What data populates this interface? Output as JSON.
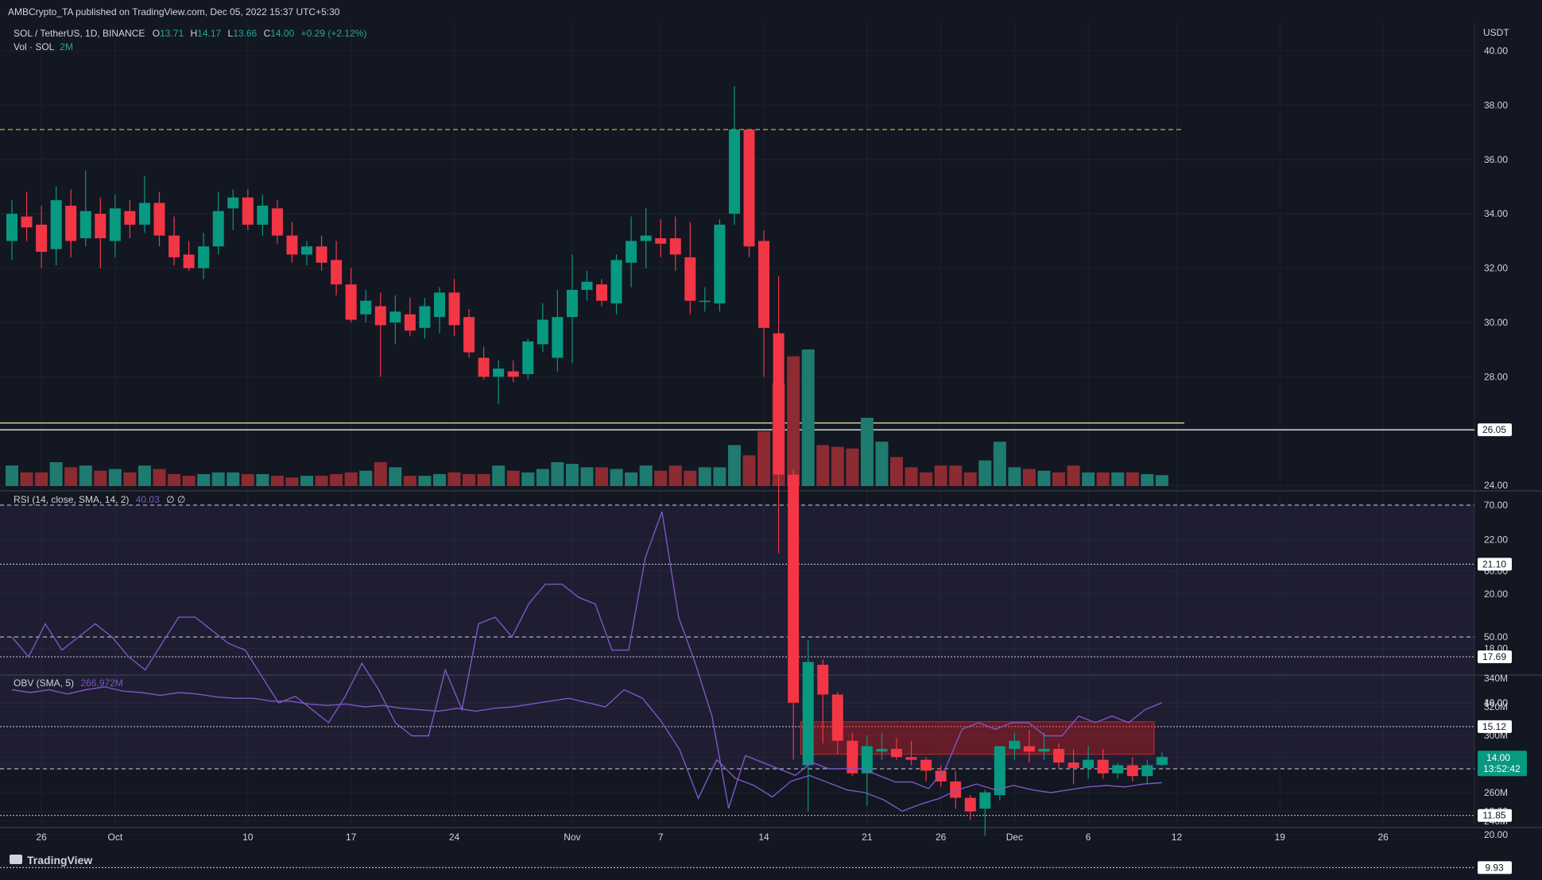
{
  "header": {
    "publisher": "AMBCrypto_TA published on TradingView.com, Dec 05, 2022 15:37 UTC+5:30",
    "symbol": "SOL / TetherUS, 1D, BINANCE",
    "ohlc": {
      "o_label": "O",
      "o": "13.71",
      "h_label": "H",
      "h": "14.17",
      "l_label": "L",
      "l": "13.66",
      "c_label": "C",
      "c": "14.00",
      "change": "+0.29 (+2.12%)"
    },
    "vol_label": "Vol · SOL",
    "vol_value": "2M"
  },
  "chart_data": [
    {
      "type": "candlestick",
      "title": "SOL / TetherUS, 1D, BINANCE",
      "currency": "USDT",
      "ylim": [
        8,
        41
      ],
      "y_ticks": [
        "40.00",
        "38.00",
        "36.00",
        "34.00",
        "32.00",
        "30.00",
        "28.00",
        "26.00",
        "24.00",
        "22.00",
        "20.00",
        "18.00",
        "16.00",
        "14.00",
        "12.00",
        "10.00"
      ],
      "candles": [
        {
          "o": 33.0,
          "h": 34.5,
          "l": 32.3,
          "c": 34.0
        },
        {
          "o": 33.9,
          "h": 34.8,
          "l": 33.0,
          "c": 33.5
        },
        {
          "o": 33.6,
          "h": 34.3,
          "l": 32.0,
          "c": 32.6
        },
        {
          "o": 32.7,
          "h": 35.0,
          "l": 32.1,
          "c": 34.5
        },
        {
          "o": 34.3,
          "h": 34.9,
          "l": 32.4,
          "c": 33.0
        },
        {
          "o": 33.1,
          "h": 35.6,
          "l": 32.8,
          "c": 34.1
        },
        {
          "o": 34.0,
          "h": 34.6,
          "l": 32.0,
          "c": 33.1
        },
        {
          "o": 33.0,
          "h": 34.7,
          "l": 32.4,
          "c": 34.2
        },
        {
          "o": 34.1,
          "h": 34.5,
          "l": 33.1,
          "c": 33.6
        },
        {
          "o": 33.6,
          "h": 35.4,
          "l": 33.3,
          "c": 34.4
        },
        {
          "o": 34.4,
          "h": 34.8,
          "l": 32.8,
          "c": 33.2
        },
        {
          "o": 33.2,
          "h": 33.9,
          "l": 32.1,
          "c": 32.4
        },
        {
          "o": 32.5,
          "h": 33.0,
          "l": 31.9,
          "c": 32.0
        },
        {
          "o": 32.0,
          "h": 33.3,
          "l": 31.6,
          "c": 32.8
        },
        {
          "o": 32.8,
          "h": 34.8,
          "l": 32.5,
          "c": 34.1
        },
        {
          "o": 34.2,
          "h": 34.9,
          "l": 33.4,
          "c": 34.6
        },
        {
          "o": 34.6,
          "h": 34.9,
          "l": 33.4,
          "c": 33.6
        },
        {
          "o": 33.6,
          "h": 34.7,
          "l": 33.2,
          "c": 34.3
        },
        {
          "o": 34.2,
          "h": 34.5,
          "l": 32.9,
          "c": 33.2
        },
        {
          "o": 33.2,
          "h": 33.7,
          "l": 32.2,
          "c": 32.5
        },
        {
          "o": 32.5,
          "h": 33.0,
          "l": 32.1,
          "c": 32.8
        },
        {
          "o": 32.8,
          "h": 33.2,
          "l": 31.9,
          "c": 32.2
        },
        {
          "o": 32.3,
          "h": 33.0,
          "l": 31.0,
          "c": 31.4
        },
        {
          "o": 31.4,
          "h": 32.0,
          "l": 30.0,
          "c": 30.1
        },
        {
          "o": 30.3,
          "h": 31.2,
          "l": 30.0,
          "c": 30.8
        },
        {
          "o": 30.6,
          "h": 31.1,
          "l": 28.0,
          "c": 29.9
        },
        {
          "o": 30.0,
          "h": 31.0,
          "l": 29.2,
          "c": 30.4
        },
        {
          "o": 30.3,
          "h": 30.9,
          "l": 29.5,
          "c": 29.7
        },
        {
          "o": 29.8,
          "h": 30.9,
          "l": 29.4,
          "c": 30.6
        },
        {
          "o": 30.2,
          "h": 31.3,
          "l": 29.6,
          "c": 31.1
        },
        {
          "o": 31.1,
          "h": 31.6,
          "l": 29.5,
          "c": 29.9
        },
        {
          "o": 30.2,
          "h": 30.5,
          "l": 28.7,
          "c": 28.9
        },
        {
          "o": 28.7,
          "h": 29.1,
          "l": 27.9,
          "c": 28.0
        },
        {
          "o": 28.0,
          "h": 28.6,
          "l": 27.0,
          "c": 28.3
        },
        {
          "o": 28.2,
          "h": 28.6,
          "l": 27.8,
          "c": 28.0
        },
        {
          "o": 28.1,
          "h": 29.4,
          "l": 27.9,
          "c": 29.3
        },
        {
          "o": 29.2,
          "h": 30.7,
          "l": 28.9,
          "c": 30.1
        },
        {
          "o": 28.7,
          "h": 31.2,
          "l": 28.2,
          "c": 30.2
        },
        {
          "o": 30.2,
          "h": 32.5,
          "l": 28.5,
          "c": 31.2
        },
        {
          "o": 31.2,
          "h": 31.9,
          "l": 30.8,
          "c": 31.5
        },
        {
          "o": 31.4,
          "h": 31.6,
          "l": 30.6,
          "c": 30.8
        },
        {
          "o": 30.7,
          "h": 32.5,
          "l": 30.3,
          "c": 32.3
        },
        {
          "o": 32.2,
          "h": 33.9,
          "l": 31.3,
          "c": 33.0
        },
        {
          "o": 33.0,
          "h": 34.2,
          "l": 32.0,
          "c": 33.2
        },
        {
          "o": 33.1,
          "h": 33.8,
          "l": 32.4,
          "c": 32.9
        },
        {
          "o": 33.1,
          "h": 33.9,
          "l": 31.9,
          "c": 32.5
        },
        {
          "o": 32.4,
          "h": 33.7,
          "l": 30.3,
          "c": 30.8
        },
        {
          "o": 30.8,
          "h": 31.3,
          "l": 30.4,
          "c": 30.8
        },
        {
          "o": 30.7,
          "h": 33.8,
          "l": 30.4,
          "c": 33.6
        },
        {
          "o": 34.0,
          "h": 38.7,
          "l": 33.6,
          "c": 37.1
        },
        {
          "o": 37.1,
          "h": 37.1,
          "l": 32.4,
          "c": 32.8
        },
        {
          "o": 33.0,
          "h": 33.4,
          "l": 28.0,
          "c": 29.8
        },
        {
          "o": 29.6,
          "h": 31.7,
          "l": 21.5,
          "c": 24.4
        },
        {
          "o": 24.4,
          "h": 24.6,
          "l": 13.9,
          "c": 16.0
        },
        {
          "o": 13.7,
          "h": 18.3,
          "l": 12.0,
          "c": 17.5
        },
        {
          "o": 17.4,
          "h": 17.6,
          "l": 14.5,
          "c": 16.3
        },
        {
          "o": 16.3,
          "h": 16.4,
          "l": 14.1,
          "c": 14.6
        },
        {
          "o": 14.6,
          "h": 14.9,
          "l": 13.3,
          "c": 13.4
        },
        {
          "o": 13.4,
          "h": 14.8,
          "l": 12.2,
          "c": 14.4
        },
        {
          "o": 14.2,
          "h": 14.9,
          "l": 13.9,
          "c": 14.3
        },
        {
          "o": 14.3,
          "h": 14.7,
          "l": 13.9,
          "c": 14.0
        },
        {
          "o": 14.0,
          "h": 14.6,
          "l": 13.7,
          "c": 13.9
        },
        {
          "o": 13.9,
          "h": 14.0,
          "l": 13.1,
          "c": 13.5
        },
        {
          "o": 13.5,
          "h": 13.7,
          "l": 12.9,
          "c": 13.1
        },
        {
          "o": 13.1,
          "h": 13.5,
          "l": 12.1,
          "c": 12.5
        },
        {
          "o": 12.5,
          "h": 12.6,
          "l": 11.7,
          "c": 12.0
        },
        {
          "o": 12.1,
          "h": 12.8,
          "l": 11.1,
          "c": 12.7
        },
        {
          "o": 12.6,
          "h": 14.4,
          "l": 12.4,
          "c": 14.4
        },
        {
          "o": 14.3,
          "h": 14.9,
          "l": 13.9,
          "c": 14.6
        },
        {
          "o": 14.4,
          "h": 15.0,
          "l": 13.8,
          "c": 14.2
        },
        {
          "o": 14.2,
          "h": 14.9,
          "l": 13.9,
          "c": 14.3
        },
        {
          "o": 14.3,
          "h": 14.5,
          "l": 13.6,
          "c": 13.8
        },
        {
          "o": 13.8,
          "h": 14.3,
          "l": 13.0,
          "c": 13.6
        },
        {
          "o": 13.6,
          "h": 14.4,
          "l": 13.2,
          "c": 13.9
        },
        {
          "o": 13.9,
          "h": 14.3,
          "l": 13.2,
          "c": 13.4
        },
        {
          "o": 13.4,
          "h": 13.8,
          "l": 13.2,
          "c": 13.7
        },
        {
          "o": 13.7,
          "h": 14.0,
          "l": 13.1,
          "c": 13.3
        },
        {
          "o": 13.3,
          "h": 13.9,
          "l": 13.0,
          "c": 13.7
        },
        {
          "o": 13.71,
          "h": 14.17,
          "l": 13.66,
          "c": 14.0
        }
      ],
      "volume": [
        60,
        40,
        40,
        70,
        55,
        60,
        45,
        50,
        40,
        60,
        50,
        35,
        30,
        35,
        40,
        40,
        35,
        35,
        30,
        25,
        30,
        30,
        35,
        40,
        45,
        70,
        55,
        30,
        30,
        35,
        40,
        35,
        35,
        60,
        45,
        40,
        50,
        70,
        65,
        55,
        55,
        50,
        40,
        60,
        45,
        60,
        45,
        55,
        55,
        120,
        90,
        160,
        300,
        380,
        400,
        120,
        115,
        110,
        200,
        130,
        85,
        55,
        40,
        60,
        60,
        40,
        75,
        130,
        55,
        50,
        45,
        40,
        60,
        40,
        40,
        40,
        40,
        35,
        32
      ],
      "levels": [
        {
          "value": 37.1,
          "style": "dashed",
          "color": "#f0d24a"
        },
        {
          "value": 26.3,
          "style": "solid",
          "color": "#e5e08a"
        },
        {
          "value": 26.05,
          "label": "26.05",
          "style": "solid",
          "color": "#ffffff"
        },
        {
          "value": 21.1,
          "label": "21.10",
          "style": "dotted",
          "color": "#d1d4dc"
        },
        {
          "value": 17.69,
          "label": "17.69",
          "style": "dotted",
          "color": "#d1d4dc"
        },
        {
          "value": 15.12,
          "label": "15.12",
          "style": "dotted",
          "color": "#d1d4dc"
        },
        {
          "value": 11.85,
          "label": "11.85",
          "style": "dotted",
          "color": "#d1d4dc"
        },
        {
          "value": 9.93,
          "label": "9.93",
          "style": "dotted",
          "color": "#d1d4dc"
        }
      ],
      "zone": {
        "y_top": 15.3,
        "y_bottom": 14.1,
        "color": "#b71c1c"
      },
      "last_price": {
        "value": "14.00",
        "countdown": "13:52:42",
        "color": "#089981"
      },
      "colors": {
        "up": "#089981",
        "down": "#f23645",
        "vol_up": "#1f7a6f",
        "vol_down": "#8c2b32"
      }
    },
    {
      "type": "line",
      "title": "RSI (14, close, SMA, 14, 2)",
      "value_label": "40.03",
      "extra": "∅ ∅",
      "ylim": [
        20,
        75
      ],
      "y_ticks": [
        "70.00",
        "60.00",
        "50.00",
        "40.00",
        "30.00",
        "20.00"
      ],
      "bands": [
        70,
        50,
        30
      ],
      "values": [
        50,
        47,
        52,
        48,
        50,
        52,
        50,
        47,
        45,
        49,
        53,
        53,
        51,
        49,
        48,
        44,
        40,
        41,
        39,
        37,
        41,
        46,
        42,
        37,
        35,
        35,
        45,
        39,
        52,
        53,
        50,
        55,
        58,
        58,
        56,
        55,
        48,
        48,
        62,
        69,
        53,
        46,
        38,
        24,
        32,
        31,
        30,
        29,
        31,
        30,
        30,
        30,
        29,
        28,
        28,
        27,
        30,
        36,
        37,
        36,
        37,
        37,
        35,
        35,
        38,
        37,
        38,
        37,
        39,
        40.03
      ],
      "color": "#7e57c2"
    },
    {
      "type": "line",
      "title": "OBV (SMA, 5)",
      "value_label": "266.972M",
      "ylim": [
        238,
        343
      ],
      "y_ticks": [
        "340M",
        "320M",
        "300M",
        "280M",
        "260M",
        "240M"
      ],
      "values": [
        332,
        330,
        332,
        329,
        332,
        334,
        331,
        330,
        328,
        330,
        329,
        327,
        326,
        326,
        324,
        324,
        322,
        321,
        322,
        320,
        321,
        319,
        318,
        317,
        319,
        317,
        319,
        320,
        322,
        324,
        326,
        323,
        320,
        332,
        326,
        310,
        290,
        256,
        283,
        270,
        265,
        257,
        268,
        272,
        267,
        262,
        260,
        255,
        247,
        252,
        256,
        262,
        266,
        262,
        265,
        262,
        260,
        262,
        264,
        265,
        264,
        266,
        266.972
      ],
      "color": "#7e57c2"
    }
  ],
  "x_axis": {
    "ticks": [
      {
        "label": "26",
        "index": 2
      },
      {
        "label": "Oct",
        "index": 7
      },
      {
        "label": "10",
        "index": 16
      },
      {
        "label": "17",
        "index": 23
      },
      {
        "label": "24",
        "index": 30
      },
      {
        "label": "Nov",
        "index": 38
      },
      {
        "label": "7",
        "index": 44
      },
      {
        "label": "14",
        "index": 51
      },
      {
        "label": "21",
        "index": 58
      },
      {
        "label": "26",
        "index": 63
      },
      {
        "label": "Dec",
        "index": 68
      },
      {
        "label": "6",
        "index": 73
      },
      {
        "label": "12",
        "index": 79
      },
      {
        "label": "19",
        "index": 86
      },
      {
        "label": "26",
        "index": 93
      }
    ]
  },
  "footer": {
    "brand": "TradingView"
  },
  "colors": {
    "bg": "#131722",
    "grid": "#1e222d",
    "text": "#b2b5be",
    "axis_text": "#d1d4dc"
  }
}
